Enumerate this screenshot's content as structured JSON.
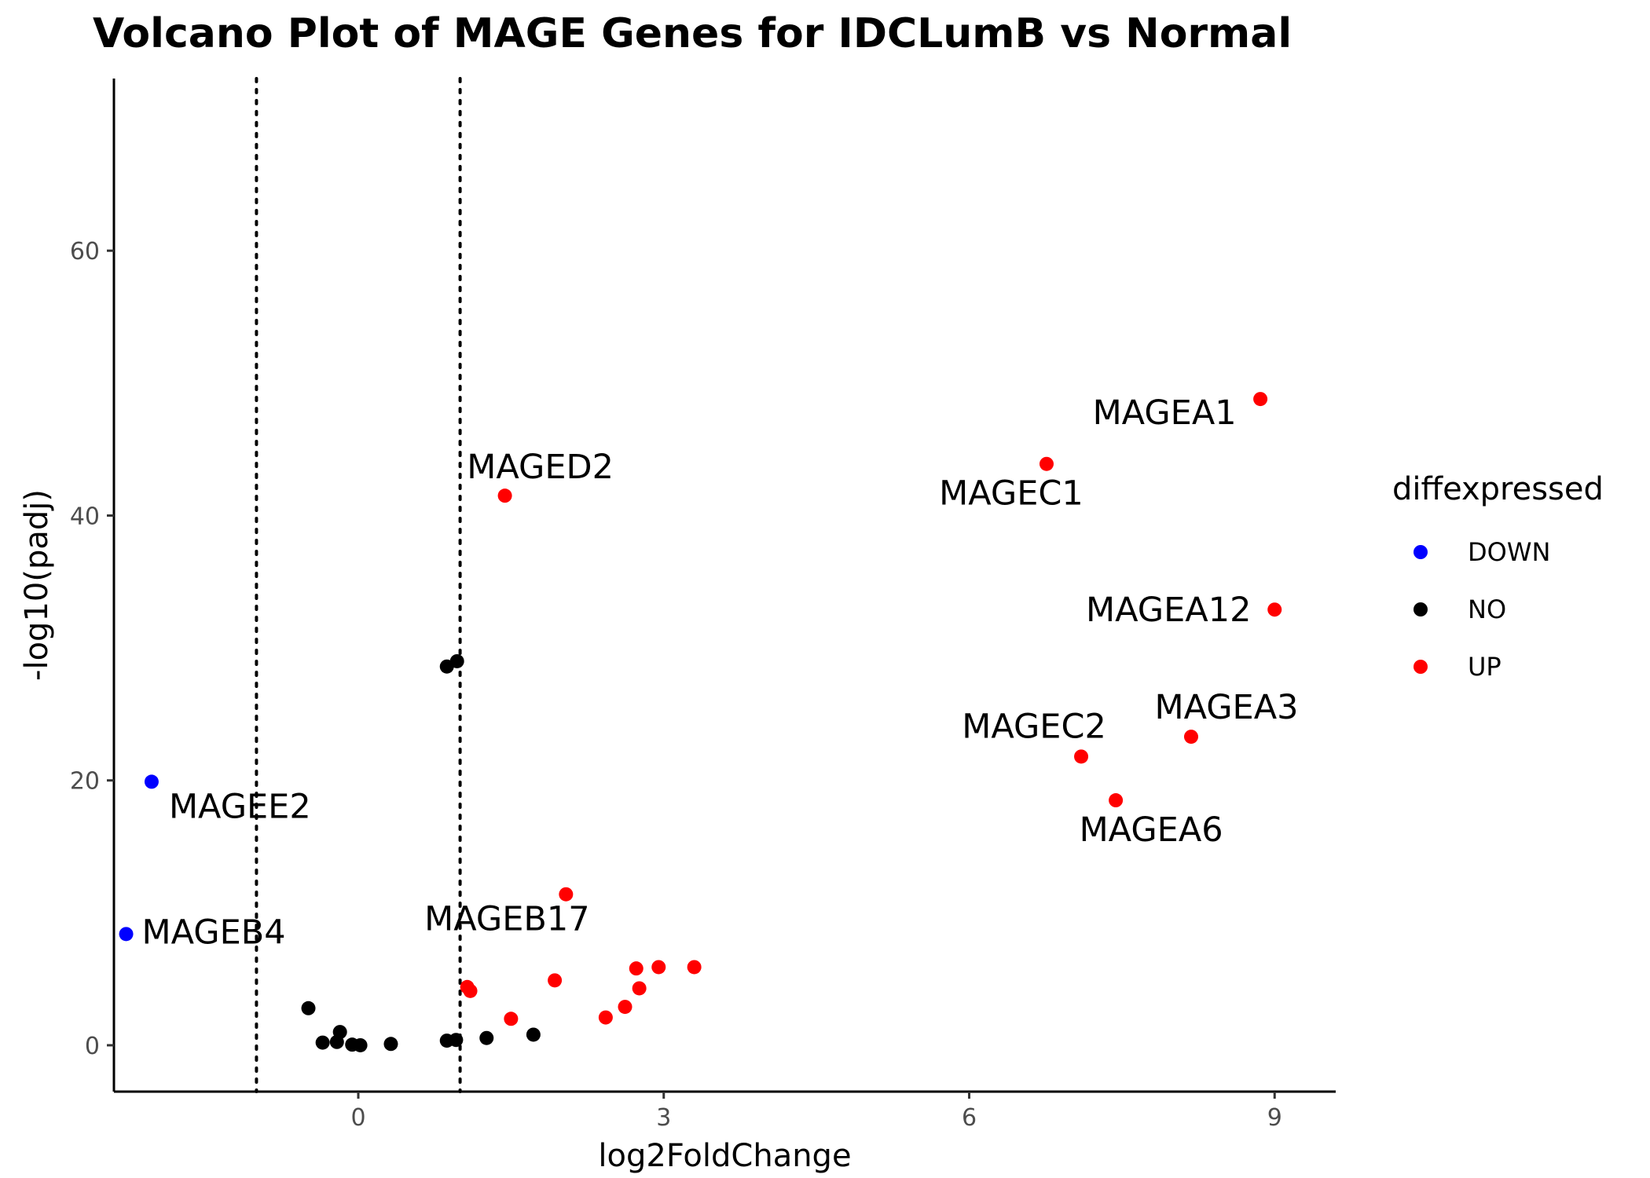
{
  "chart_data": {
    "type": "scatter",
    "title": "Volcano Plot of MAGE Genes for IDCLumB vs Normal",
    "xlabel": "log2FoldChange",
    "ylabel": "-log10(padj)",
    "xlim": [
      -2.4,
      9.6
    ],
    "ylim": [
      -3.5,
      73
    ],
    "x_ticks": [
      {
        "value": 0,
        "label": "0"
      },
      {
        "value": 3,
        "label": "3"
      },
      {
        "value": 6,
        "label": "6"
      },
      {
        "value": 9,
        "label": "9"
      }
    ],
    "y_ticks": [
      {
        "value": 0,
        "label": "0"
      },
      {
        "value": 20,
        "label": "20"
      },
      {
        "value": 40,
        "label": "40"
      },
      {
        "value": 60,
        "label": "60"
      }
    ],
    "vlines": [
      -1,
      1
    ],
    "grid": false,
    "legend": {
      "title": "diffexpressed",
      "position": "right",
      "entries": [
        {
          "name": "DOWN",
          "color": "#0000ff"
        },
        {
          "name": "NO",
          "color": "#000000"
        },
        {
          "name": "UP",
          "color": "#ff0000"
        }
      ]
    },
    "colors": {
      "DOWN": "#0000ff",
      "NO": "#000000",
      "UP": "#ff0000"
    },
    "points": [
      {
        "x": -2.03,
        "y": 19.9,
        "group": "DOWN",
        "label": "MAGEE2"
      },
      {
        "x": -2.28,
        "y": 8.4,
        "group": "DOWN",
        "label": "MAGEB4"
      },
      {
        "x": 0.87,
        "y": 28.6,
        "group": "NO",
        "label": ""
      },
      {
        "x": 0.97,
        "y": 29.0,
        "group": "NO",
        "label": ""
      },
      {
        "x": -0.49,
        "y": 2.8,
        "group": "NO",
        "label": ""
      },
      {
        "x": -0.18,
        "y": 1.0,
        "group": "NO",
        "label": ""
      },
      {
        "x": -0.35,
        "y": 0.2,
        "group": "NO",
        "label": ""
      },
      {
        "x": -0.21,
        "y": 0.25,
        "group": "NO",
        "label": ""
      },
      {
        "x": -0.06,
        "y": 0.05,
        "group": "NO",
        "label": ""
      },
      {
        "x": 0.02,
        "y": 0.0,
        "group": "NO",
        "label": ""
      },
      {
        "x": 0.32,
        "y": 0.1,
        "group": "NO",
        "label": ""
      },
      {
        "x": 0.87,
        "y": 0.35,
        "group": "NO",
        "label": ""
      },
      {
        "x": 0.96,
        "y": 0.4,
        "group": "NO",
        "label": ""
      },
      {
        "x": 1.26,
        "y": 0.55,
        "group": "NO",
        "label": ""
      },
      {
        "x": 1.72,
        "y": 0.8,
        "group": "NO",
        "label": ""
      },
      {
        "x": 1.44,
        "y": 41.5,
        "group": "UP",
        "label": "MAGED2"
      },
      {
        "x": 2.04,
        "y": 11.4,
        "group": "UP",
        "label": "MAGEB17"
      },
      {
        "x": 8.86,
        "y": 48.8,
        "group": "UP",
        "label": "MAGEA1"
      },
      {
        "x": 6.76,
        "y": 43.9,
        "group": "UP",
        "label": "MAGEC1"
      },
      {
        "x": 9.0,
        "y": 32.9,
        "group": "UP",
        "label": "MAGEA12"
      },
      {
        "x": 8.18,
        "y": 23.3,
        "group": "UP",
        "label": "MAGEA3"
      },
      {
        "x": 7.1,
        "y": 21.8,
        "group": "UP",
        "label": "MAGEC2"
      },
      {
        "x": 7.44,
        "y": 18.5,
        "group": "UP",
        "label": "MAGEA6"
      },
      {
        "x": 1.07,
        "y": 4.4,
        "group": "UP",
        "label": ""
      },
      {
        "x": 1.1,
        "y": 4.1,
        "group": "UP",
        "label": ""
      },
      {
        "x": 1.5,
        "y": 2.0,
        "group": "UP",
        "label": ""
      },
      {
        "x": 1.93,
        "y": 4.9,
        "group": "UP",
        "label": ""
      },
      {
        "x": 2.43,
        "y": 2.1,
        "group": "UP",
        "label": ""
      },
      {
        "x": 2.62,
        "y": 2.9,
        "group": "UP",
        "label": ""
      },
      {
        "x": 2.73,
        "y": 5.8,
        "group": "UP",
        "label": ""
      },
      {
        "x": 2.76,
        "y": 4.3,
        "group": "UP",
        "label": ""
      },
      {
        "x": 2.95,
        "y": 5.9,
        "group": "UP",
        "label": ""
      },
      {
        "x": 3.3,
        "y": 5.9,
        "group": "UP",
        "label": ""
      }
    ]
  }
}
